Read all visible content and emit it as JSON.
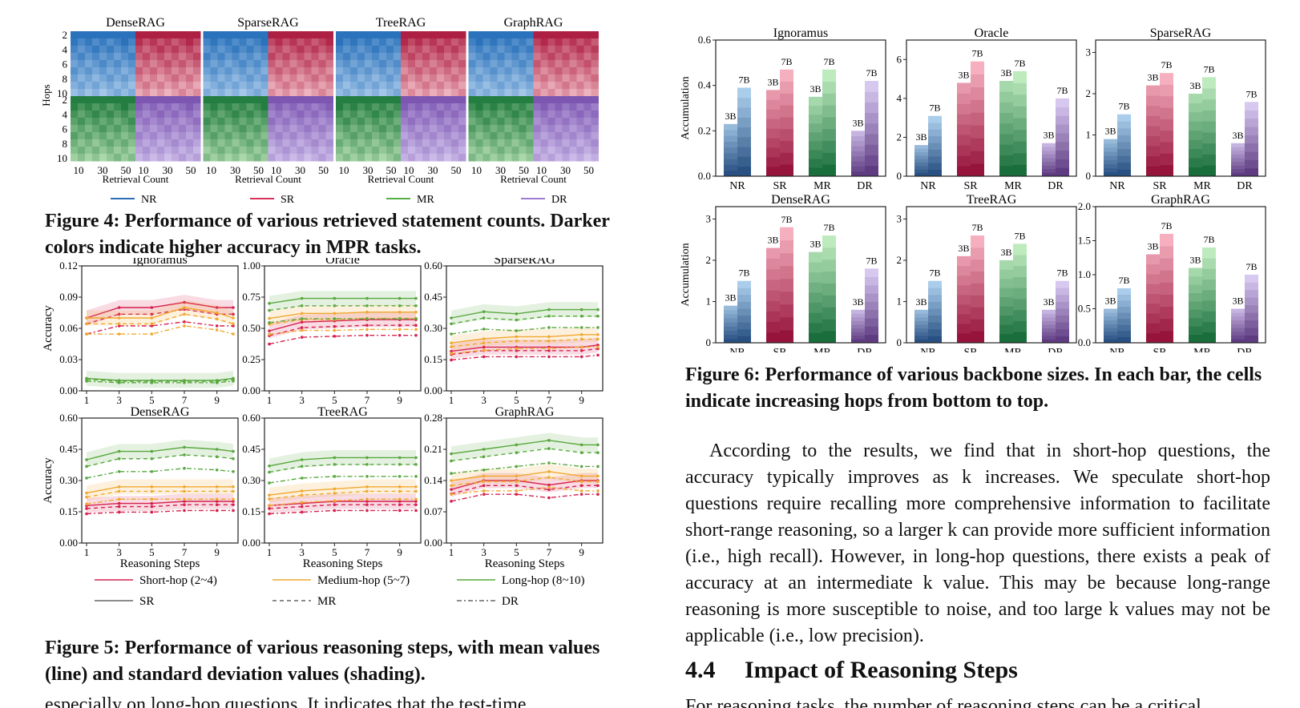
{
  "fig4": {
    "panels": [
      "DenseRAG",
      "SparseRAG",
      "TreeRAG",
      "GraphRAG"
    ],
    "ylabel": "Hops",
    "hop_ticks": [
      "2",
      "4",
      "6",
      "8",
      "10"
    ],
    "x_ticks": [
      "10",
      "30",
      "50"
    ],
    "xlabel": "Retrieval Count",
    "legend": [
      "NR",
      "SR",
      "MR",
      "DR"
    ],
    "legend_colors": [
      "#2a6db5",
      "#d6325a",
      "#55b046",
      "#a07bd0"
    ],
    "caption": "Figure 4: Performance of various retrieved statement counts. Darker colors indicate higher accuracy in MPR tasks."
  },
  "fig5": {
    "caption": "Figure 5: Performance of various reasoning steps, with mean values (line) and standard deviation values (shading).",
    "xlabel": "Reasoning Steps",
    "ylabel": "Accuracy",
    "legend_hops": [
      "Short-hop (2~4)",
      "Medium-hop (5~7)",
      "Long-hop (8~10)"
    ],
    "legend_styles": [
      "SR",
      "MR",
      "DR"
    ],
    "colors": {
      "short": "#d6204e",
      "medium": "#f0a830",
      "long": "#58a83e"
    }
  },
  "fig6": {
    "caption": "Figure 6: Performance of various backbone sizes. In each bar, the cells indicate increasing hops from bottom to top.",
    "ylabel": "Accumulation",
    "categories": [
      "NR",
      "SR",
      "MR",
      "DR"
    ],
    "bar_labels": [
      "3B",
      "7B"
    ]
  },
  "chart_data": [
    {
      "type": "heatmap",
      "title": "DenseRAG",
      "ylabel": "Hops",
      "xlabel": "Retrieval Count",
      "y_ticks": [
        2,
        4,
        6,
        8,
        10
      ],
      "x_ticks": [
        10,
        30,
        50
      ]
    },
    {
      "type": "heatmap",
      "title": "SparseRAG",
      "xlabel": "Retrieval Count",
      "y_ticks": [
        2,
        4,
        6,
        8,
        10
      ],
      "x_ticks": [
        10,
        30,
        50
      ]
    },
    {
      "type": "heatmap",
      "title": "TreeRAG",
      "xlabel": "Retrieval Count",
      "y_ticks": [
        2,
        4,
        6,
        8,
        10
      ],
      "x_ticks": [
        10,
        30,
        50
      ]
    },
    {
      "type": "heatmap",
      "title": "GraphRAG",
      "xlabel": "Retrieval Count",
      "y_ticks": [
        2,
        4,
        6,
        8,
        10
      ],
      "x_ticks": [
        10,
        30,
        50
      ]
    },
    {
      "type": "line",
      "title": "Ignoramus",
      "ylabel": "Accuracy",
      "ylim": [
        0,
        0.12
      ],
      "yticks": [
        "0.00",
        "0.03",
        "0.06",
        "0.09",
        "0.12"
      ],
      "x": [
        1,
        3,
        5,
        7,
        9,
        10
      ],
      "series": [
        {
          "name": "Short-hop (2~4)",
          "values": [
            0.07,
            0.08,
            0.08,
            0.085,
            0.08,
            0.08
          ]
        },
        {
          "name": "Medium-hop (5~7)",
          "values": [
            0.07,
            0.07,
            0.07,
            0.08,
            0.075,
            0.07
          ]
        },
        {
          "name": "Long-hop (8~10)",
          "values": [
            0.012,
            0.01,
            0.01,
            0.01,
            0.01,
            0.012
          ]
        }
      ]
    },
    {
      "type": "line",
      "title": "Oracle",
      "ylim": [
        0,
        1
      ],
      "yticks": [
        "0.00",
        "0.25",
        "0.50",
        "0.75",
        "1.00"
      ],
      "x": [
        1,
        3,
        5,
        7,
        9,
        10
      ],
      "series": [
        {
          "name": "Short-hop (2~4)",
          "values": [
            0.48,
            0.55,
            0.56,
            0.57,
            0.57,
            0.57
          ]
        },
        {
          "name": "Medium-hop (5~7)",
          "values": [
            0.58,
            0.62,
            0.62,
            0.63,
            0.63,
            0.63
          ]
        },
        {
          "name": "Long-hop (8~10)",
          "values": [
            0.7,
            0.74,
            0.74,
            0.74,
            0.74,
            0.74
          ]
        }
      ]
    },
    {
      "type": "line",
      "title": "SparseRAG",
      "ylim": [
        0,
        0.6
      ],
      "yticks": [
        "0.00",
        "0.15",
        "0.30",
        "0.45",
        "0.60"
      ],
      "x": [
        1,
        3,
        5,
        7,
        9,
        10
      ],
      "series": [
        {
          "name": "Short-hop (2~4)",
          "values": [
            0.19,
            0.21,
            0.21,
            0.21,
            0.21,
            0.22
          ]
        },
        {
          "name": "Medium-hop (5~7)",
          "values": [
            0.23,
            0.25,
            0.26,
            0.26,
            0.27,
            0.27
          ]
        },
        {
          "name": "Long-hop (8~10)",
          "values": [
            0.35,
            0.38,
            0.37,
            0.39,
            0.39,
            0.39
          ]
        }
      ]
    },
    {
      "type": "line",
      "title": "DenseRAG",
      "ylabel": "Accuracy",
      "xlabel": "Reasoning Steps",
      "ylim": [
        0,
        0.6
      ],
      "yticks": [
        "0.00",
        "0.15",
        "0.30",
        "0.45",
        "0.60"
      ],
      "x": [
        1,
        3,
        5,
        7,
        9,
        10
      ],
      "series": [
        {
          "name": "Short-hop (2~4)",
          "values": [
            0.18,
            0.19,
            0.19,
            0.2,
            0.2,
            0.2
          ]
        },
        {
          "name": "Medium-hop (5~7)",
          "values": [
            0.24,
            0.27,
            0.27,
            0.27,
            0.27,
            0.27
          ]
        },
        {
          "name": "Long-hop (8~10)",
          "values": [
            0.4,
            0.44,
            0.44,
            0.46,
            0.45,
            0.44
          ]
        }
      ]
    },
    {
      "type": "line",
      "title": "TreeRAG",
      "xlabel": "Reasoning Steps",
      "ylim": [
        0,
        0.6
      ],
      "yticks": [
        "0.00",
        "0.15",
        "0.30",
        "0.45",
        "0.60"
      ],
      "x": [
        1,
        3,
        5,
        7,
        9,
        10
      ],
      "series": [
        {
          "name": "Short-hop (2~4)",
          "values": [
            0.18,
            0.19,
            0.2,
            0.2,
            0.2,
            0.2
          ]
        },
        {
          "name": "Medium-hop (5~7)",
          "values": [
            0.23,
            0.25,
            0.26,
            0.27,
            0.27,
            0.27
          ]
        },
        {
          "name": "Long-hop (8~10)",
          "values": [
            0.37,
            0.4,
            0.41,
            0.41,
            0.41,
            0.41
          ]
        }
      ]
    },
    {
      "type": "line",
      "title": "GraphRAG",
      "xlabel": "Reasoning Steps",
      "ylim": [
        0,
        0.28
      ],
      "yticks": [
        "0.00",
        "0.07",
        "0.14",
        "0.21",
        "0.28"
      ],
      "x": [
        1,
        3,
        5,
        7,
        9,
        10
      ],
      "series": [
        {
          "name": "Short-hop (2~4)",
          "values": [
            0.12,
            0.14,
            0.14,
            0.13,
            0.14,
            0.14
          ]
        },
        {
          "name": "Medium-hop (5~7)",
          "values": [
            0.14,
            0.15,
            0.15,
            0.16,
            0.15,
            0.15
          ]
        },
        {
          "name": "Long-hop (8~10)",
          "values": [
            0.2,
            0.21,
            0.22,
            0.23,
            0.22,
            0.22
          ]
        }
      ]
    },
    {
      "type": "bar",
      "title": "Ignoramus",
      "ylabel": "Accumulation",
      "ylim": [
        0,
        0.6
      ],
      "yticks": [
        "0.0",
        "0.2",
        "0.4",
        "0.6"
      ],
      "categories": [
        "NR",
        "SR",
        "MR",
        "DR"
      ],
      "series": [
        {
          "name": "3B",
          "values": [
            0.23,
            0.38,
            0.35,
            0.2
          ]
        },
        {
          "name": "7B",
          "values": [
            0.39,
            0.47,
            0.47,
            0.42
          ]
        }
      ]
    },
    {
      "type": "bar",
      "title": "Oracle",
      "ylim": [
        0,
        7
      ],
      "yticks": [
        "0",
        "2",
        "4",
        "6"
      ],
      "categories": [
        "NR",
        "SR",
        "MR",
        "DR"
      ],
      "series": [
        {
          "name": "3B",
          "values": [
            1.6,
            4.8,
            4.9,
            1.7
          ]
        },
        {
          "name": "7B",
          "values": [
            3.1,
            5.9,
            5.4,
            4.0
          ]
        }
      ]
    },
    {
      "type": "bar",
      "title": "SparseRAG",
      "ylim": [
        0,
        3.3
      ],
      "yticks": [
        "0",
        "1",
        "2",
        "3"
      ],
      "categories": [
        "NR",
        "SR",
        "MR",
        "DR"
      ],
      "series": [
        {
          "name": "3B",
          "values": [
            0.9,
            2.2,
            2.0,
            0.8
          ]
        },
        {
          "name": "7B",
          "values": [
            1.5,
            2.5,
            2.4,
            1.8
          ]
        }
      ]
    },
    {
      "type": "bar",
      "title": "DenseRAG",
      "ylabel": "Accumulation",
      "ylim": [
        0,
        3.3
      ],
      "yticks": [
        "0",
        "1",
        "2",
        "3"
      ],
      "categories": [
        "NR",
        "SR",
        "MR",
        "DR"
      ],
      "series": [
        {
          "name": "3B",
          "values": [
            0.9,
            2.3,
            2.2,
            0.8
          ]
        },
        {
          "name": "7B",
          "values": [
            1.5,
            2.8,
            2.6,
            1.8
          ]
        }
      ]
    },
    {
      "type": "bar",
      "title": "TreeRAG",
      "ylim": [
        0,
        3.3
      ],
      "yticks": [
        "0",
        "1",
        "2",
        "3"
      ],
      "categories": [
        "NR",
        "SR",
        "MR",
        "DR"
      ],
      "series": [
        {
          "name": "3B",
          "values": [
            0.8,
            2.1,
            2.0,
            0.8
          ]
        },
        {
          "name": "7B",
          "values": [
            1.5,
            2.6,
            2.4,
            1.5
          ]
        }
      ]
    },
    {
      "type": "bar",
      "title": "GraphRAG",
      "ylim": [
        0,
        2.0
      ],
      "yticks": [
        "0.0",
        "0.5",
        "1.0",
        "1.5",
        "2.0"
      ],
      "categories": [
        "NR",
        "SR",
        "MR",
        "DR"
      ],
      "series": [
        {
          "name": "3B",
          "values": [
            0.5,
            1.3,
            1.1,
            0.5
          ]
        },
        {
          "name": "7B",
          "values": [
            0.8,
            1.6,
            1.4,
            1.0
          ]
        }
      ]
    }
  ],
  "text": {
    "para": "According to the results, we find that in short-hop questions, the accuracy typically improves as k increases. We speculate short-hop questions require recalling more comprehensive information to facilitate short-range reasoning, so a larger k can provide more sufficient information (i.e., high recall). However, in long-hop questions, there exists a peak of accuracy at an intermediate k value. This may be because long-range reasoning is more susceptible to noise, and too large k values may not be applicable (i.e., low precision).",
    "section_num": "4.4",
    "section_title": "Impact of Reasoning Steps",
    "cut_right": "For reasoning tasks, the number of reasoning steps can be a critical",
    "cut_left": "especially on long-hop questions. It indicates that the test-time"
  }
}
